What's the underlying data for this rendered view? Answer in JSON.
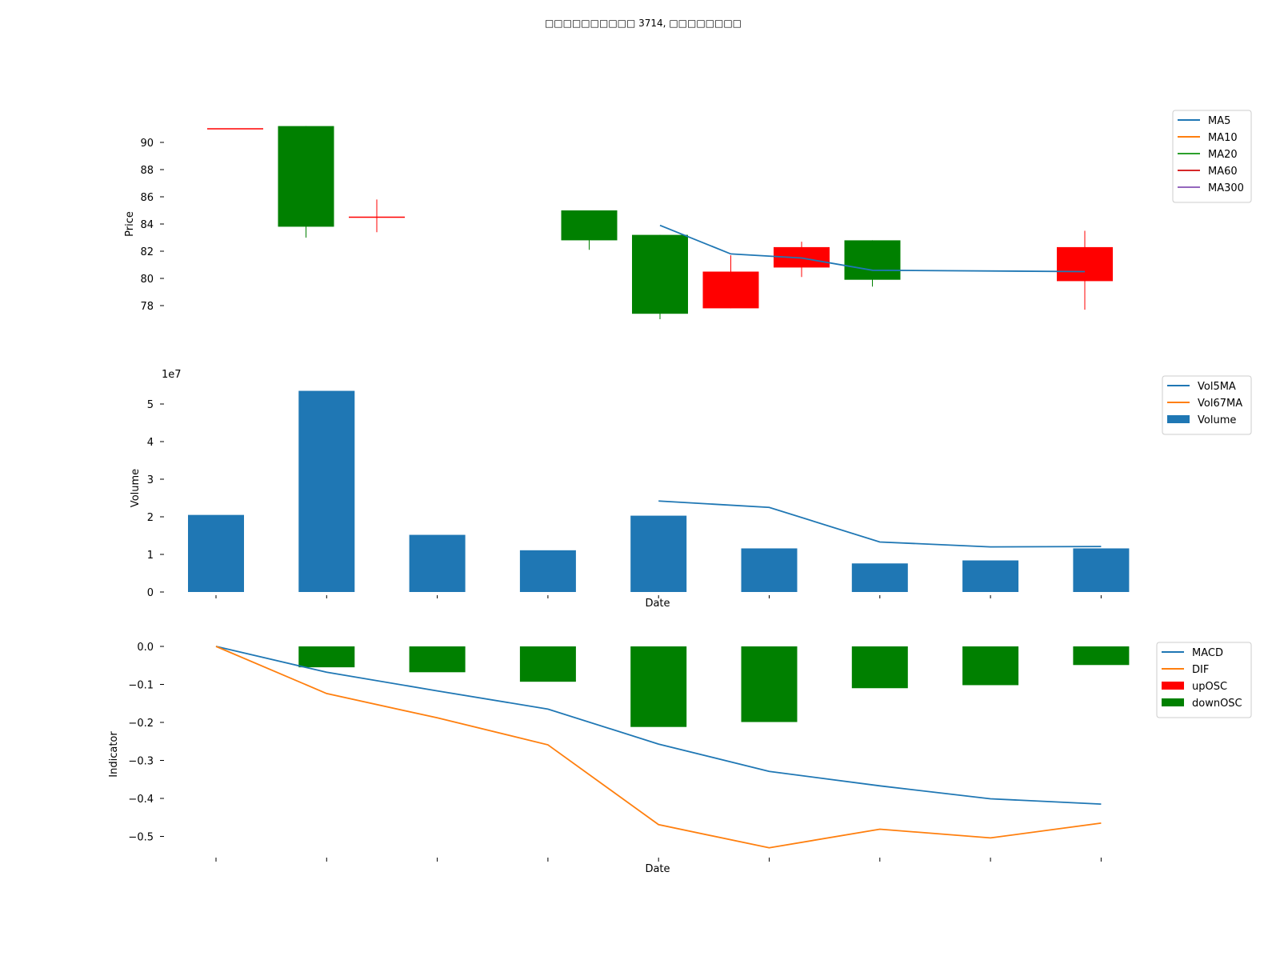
{
  "title": "□□□□□□□□□□ 3714, □□□□□□□□",
  "chart_data": [
    {
      "type": "candlestick",
      "ylabel": "Price",
      "yticks": [
        78,
        80,
        82,
        84,
        86,
        88,
        90
      ],
      "ylim": [
        76.5,
        92.5
      ],
      "candles": [
        {
          "open": 91.0,
          "close": 91.0,
          "high": 91.0,
          "low": 91.0
        },
        {
          "open": 91.2,
          "close": 83.8,
          "high": 91.2,
          "low": 83.0
        },
        {
          "open": 84.5,
          "close": 84.5,
          "high": 85.8,
          "low": 83.4
        },
        null,
        null,
        {
          "open": 85.0,
          "close": 82.8,
          "high": 85.0,
          "low": 82.1
        },
        {
          "open": 83.2,
          "close": 77.4,
          "high": 83.2,
          "low": 77.0
        },
        {
          "open": 77.8,
          "close": 80.5,
          "high": 81.7,
          "low": 77.8
        },
        {
          "open": 80.8,
          "close": 82.3,
          "high": 82.7,
          "low": 80.1
        },
        {
          "open": 82.8,
          "close": 79.9,
          "high": 82.8,
          "low": 79.4
        },
        null,
        null,
        {
          "open": 79.8,
          "close": 82.3,
          "high": 83.5,
          "low": 77.7
        }
      ],
      "ma5": [
        null,
        null,
        null,
        null,
        null,
        null,
        83.9,
        81.8,
        81.5,
        80.6,
        null,
        null,
        80.5
      ],
      "legend": [
        "MA5",
        "MA10",
        "MA20",
        "MA60",
        "MA300"
      ],
      "legend_colors": [
        "#1f77b4",
        "#ff7f0e",
        "#2ca02c",
        "#d62728",
        "#9467bd"
      ],
      "legend_position": "upper-right"
    },
    {
      "type": "bar",
      "ylabel": "Volume",
      "xlabel": "Date",
      "exponent_label": "1e7",
      "yticks": [
        0,
        1,
        2,
        3,
        4,
        5
      ],
      "ylim": [
        0,
        5.6
      ],
      "values": [
        2.05,
        5.35,
        1.52,
        1.11,
        2.03,
        1.16,
        0.76,
        0.84,
        1.16
      ],
      "vol5ma": [
        null,
        null,
        null,
        null,
        2.42,
        2.25,
        1.33,
        1.2,
        1.21
      ],
      "legend": [
        "Vol5MA",
        "Vol67MA",
        "Volume"
      ],
      "legend_colors": [
        "#1f77b4",
        "#ff7f0e",
        "#1f77b4"
      ],
      "legend_position": "upper-right"
    },
    {
      "type": "bar+line",
      "ylabel": "Indicator",
      "xlabel": "Date",
      "yticks": [
        0.0,
        -0.1,
        -0.2,
        -0.3,
        -0.4,
        -0.5
      ],
      "ylim": [
        -0.56,
        0.02
      ],
      "osc": [
        0,
        -0.055,
        -0.068,
        -0.093,
        -0.212,
        -0.199,
        -0.11,
        -0.102,
        -0.049
      ],
      "macd": [
        0,
        -0.068,
        -0.117,
        -0.165,
        -0.257,
        -0.329,
        -0.367,
        -0.401,
        -0.415
      ],
      "dif": [
        0,
        -0.124,
        -0.188,
        -0.259,
        -0.469,
        -0.53,
        -0.481,
        -0.504,
        -0.465
      ],
      "legend": [
        "MACD",
        "DIF",
        "upOSC",
        "downOSC"
      ],
      "legend_colors": [
        "#1f77b4",
        "#ff7f0e",
        "#ff0000",
        "#008000"
      ],
      "legend_position": "upper-right"
    }
  ]
}
